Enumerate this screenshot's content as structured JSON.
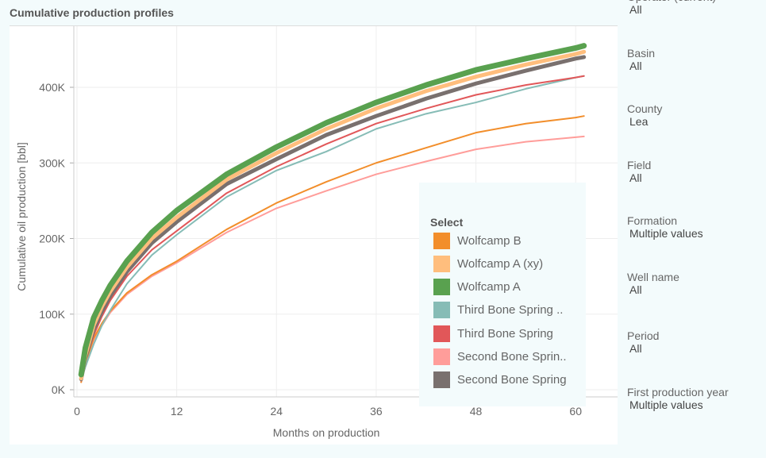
{
  "title": "Cumulative production profiles",
  "filters": [
    {
      "label": "Operator (current)",
      "value": "All"
    },
    {
      "label": "Basin",
      "value": "All"
    },
    {
      "label": "County",
      "value": "Lea"
    },
    {
      "label": "Field",
      "value": "All"
    },
    {
      "label": "Formation",
      "value": "Multiple values"
    },
    {
      "label": "Well name",
      "value": "All"
    },
    {
      "label": "Period",
      "value": "All"
    },
    {
      "label": "First production year",
      "value": "Multiple values"
    }
  ],
  "legend": {
    "title": "Select"
  },
  "chart_data": {
    "type": "line",
    "title": "Cumulative production profiles",
    "xlabel": "Months on production",
    "ylabel": "Cumulative oil production [bbl]",
    "xlim": [
      0,
      61
    ],
    "ylim": [
      0,
      450
    ],
    "xticks": [
      0,
      12,
      24,
      36,
      48,
      60
    ],
    "xtick_labels": [
      "0",
      "12",
      "24",
      "36",
      "48",
      "60"
    ],
    "yticks": [
      0,
      100,
      200,
      300,
      400
    ],
    "ytick_labels": [
      "0K",
      "100K",
      "200K",
      "300K",
      "400K"
    ],
    "legend_position": "bottom-right",
    "x": [
      0.5,
      1,
      2,
      3,
      4,
      6,
      9,
      12,
      18,
      24,
      30,
      36,
      42,
      48,
      54,
      60,
      61
    ],
    "series": [
      {
        "name": "Wolfcamp B",
        "color": "#f28e2b",
        "values": [
          10,
          35,
          68,
          88,
          104,
          128,
          152,
          170,
          212,
          247,
          275,
          300,
          320,
          340,
          352,
          360,
          362
        ]
      },
      {
        "name": "Wolfcamp A (xy)",
        "color": "#ffbe7d",
        "values": [
          15,
          45,
          85,
          110,
          130,
          162,
          200,
          228,
          278,
          313,
          345,
          372,
          395,
          414,
          430,
          444,
          447
        ]
      },
      {
        "name": "Wolfcamp A",
        "color": "#59a14f",
        "values": [
          20,
          55,
          95,
          118,
          138,
          170,
          208,
          237,
          285,
          321,
          353,
          380,
          403,
          423,
          438,
          452,
          455
        ]
      },
      {
        "name": "Third Bone Spring ..",
        "color": "#86bcb6",
        "values": [
          12,
          30,
          60,
          85,
          105,
          140,
          178,
          205,
          255,
          290,
          315,
          345,
          365,
          380,
          398,
          413,
          415
        ]
      },
      {
        "name": "Third Bone Spring",
        "color": "#e15759",
        "values": [
          12,
          38,
          72,
          97,
          118,
          150,
          185,
          210,
          260,
          295,
          325,
          352,
          372,
          390,
          403,
          413,
          415
        ]
      },
      {
        "name": "Second Bone Sprin..",
        "color": "#ff9d9a",
        "values": [
          10,
          33,
          65,
          85,
          102,
          126,
          150,
          168,
          208,
          240,
          263,
          285,
          302,
          318,
          328,
          334,
          335
        ]
      },
      {
        "name": "Second Bone Spring",
        "color": "#79706e",
        "values": [
          14,
          42,
          80,
          104,
          124,
          156,
          194,
          222,
          272,
          305,
          337,
          362,
          385,
          405,
          422,
          438,
          440
        ]
      }
    ]
  }
}
